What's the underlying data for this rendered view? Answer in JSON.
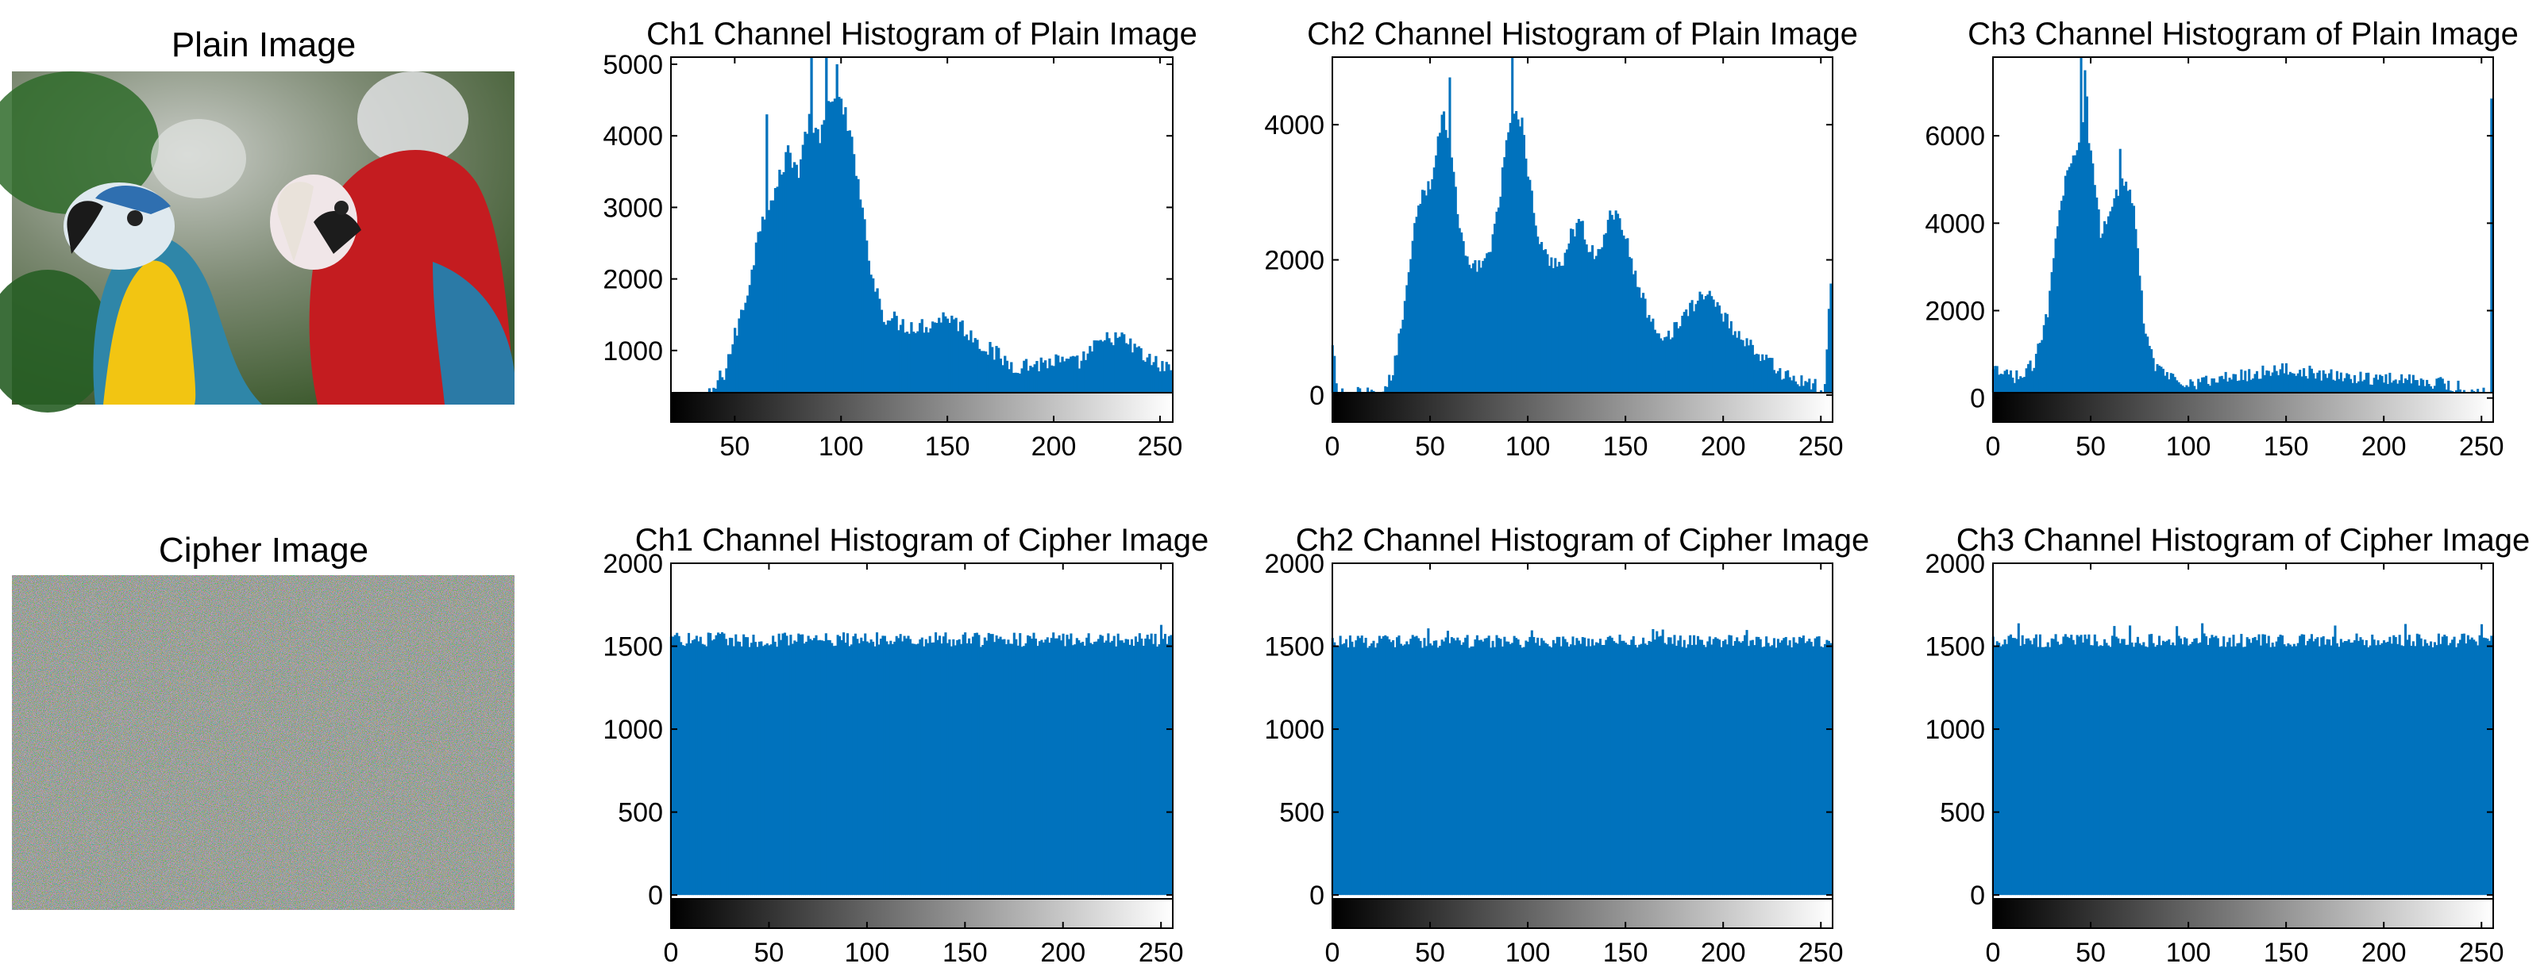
{
  "figure": {
    "plain_image_title": "Plain Image",
    "cipher_image_title": "Cipher Image",
    "colors": {
      "bar": "#0072BD",
      "axis": "#000000"
    }
  },
  "chart_data": [
    {
      "type": "bar",
      "title": "Ch1 Channel Histogram of Plain Image",
      "xlim": [
        20,
        256
      ],
      "ylim": [
        0,
        5100
      ],
      "xticks": [
        50,
        100,
        150,
        200,
        250
      ],
      "yticks": [
        1000,
        2000,
        3000,
        4000,
        5000
      ],
      "colorbar": "grayscale 0-255 below x-axis",
      "control_points": [
        [
          20,
          0
        ],
        [
          25,
          40
        ],
        [
          35,
          200
        ],
        [
          45,
          700
        ],
        [
          55,
          1700
        ],
        [
          63,
          2900
        ],
        [
          70,
          3300
        ],
        [
          75,
          3800
        ],
        [
          80,
          3500
        ],
        [
          85,
          4300
        ],
        [
          90,
          3900
        ],
        [
          95,
          4600
        ],
        [
          100,
          4400
        ],
        [
          105,
          3900
        ],
        [
          110,
          2900
        ],
        [
          115,
          2000
        ],
        [
          120,
          1500
        ],
        [
          130,
          1350
        ],
        [
          140,
          1350
        ],
        [
          150,
          1500
        ],
        [
          160,
          1250
        ],
        [
          170,
          1000
        ],
        [
          180,
          800
        ],
        [
          190,
          800
        ],
        [
          200,
          850
        ],
        [
          210,
          800
        ],
        [
          220,
          1050
        ],
        [
          228,
          1200
        ],
        [
          235,
          1100
        ],
        [
          245,
          850
        ],
        [
          256,
          720
        ]
      ],
      "peak_spikes": [
        [
          65,
          4300
        ],
        [
          86,
          5100
        ],
        [
          93,
          5100
        ],
        [
          98,
          5000
        ],
        [
          102,
          4400
        ]
      ],
      "noise_amplitude": 130
    },
    {
      "type": "bar",
      "title": "Ch2 Channel Histogram of Plain Image",
      "xlim": [
        0,
        256
      ],
      "ylim": [
        -400,
        5000
      ],
      "xticks": [
        0,
        50,
        100,
        150,
        200,
        250
      ],
      "yticks": [
        0,
        2000,
        4000
      ],
      "colorbar": "grayscale 0-255 below x-axis",
      "control_points": [
        [
          0,
          700
        ],
        [
          3,
          0
        ],
        [
          20,
          0
        ],
        [
          28,
          80
        ],
        [
          33,
          600
        ],
        [
          38,
          1600
        ],
        [
          42,
          2600
        ],
        [
          46,
          3000
        ],
        [
          50,
          3100
        ],
        [
          53,
          3600
        ],
        [
          57,
          4200
        ],
        [
          61,
          3500
        ],
        [
          66,
          2300
        ],
        [
          71,
          1850
        ],
        [
          76,
          2000
        ],
        [
          81,
          2100
        ],
        [
          86,
          3000
        ],
        [
          90,
          4000
        ],
        [
          93,
          4200
        ],
        [
          97,
          4000
        ],
        [
          101,
          3100
        ],
        [
          106,
          2200
        ],
        [
          112,
          1950
        ],
        [
          118,
          2000
        ],
        [
          122,
          2400
        ],
        [
          127,
          2550
        ],
        [
          132,
          2150
        ],
        [
          137,
          2050
        ],
        [
          142,
          2700
        ],
        [
          147,
          2650
        ],
        [
          152,
          2100
        ],
        [
          157,
          1550
        ],
        [
          163,
          1100
        ],
        [
          170,
          850
        ],
        [
          177,
          1050
        ],
        [
          184,
          1300
        ],
        [
          190,
          1500
        ],
        [
          194,
          1480
        ],
        [
          198,
          1300
        ],
        [
          204,
          1000
        ],
        [
          212,
          800
        ],
        [
          222,
          500
        ],
        [
          232,
          300
        ],
        [
          244,
          150
        ],
        [
          252,
          80
        ],
        [
          255,
          1700
        ]
      ],
      "peak_spikes": [
        [
          60,
          4700
        ],
        [
          92,
          5000
        ]
      ],
      "noise_amplitude": 120
    },
    {
      "type": "bar",
      "title": "Ch3 Channel Histogram of Plain Image",
      "xlim": [
        0,
        256
      ],
      "ylim": [
        -550,
        7800
      ],
      "xticks": [
        0,
        50,
        100,
        150,
        200,
        250
      ],
      "yticks": [
        0,
        2000,
        4000,
        6000
      ],
      "colorbar": "grayscale 0-255 below x-axis",
      "control_points": [
        [
          0,
          600
        ],
        [
          10,
          500
        ],
        [
          16,
          500
        ],
        [
          22,
          900
        ],
        [
          28,
          2000
        ],
        [
          32,
          3800
        ],
        [
          37,
          5000
        ],
        [
          42,
          5600
        ],
        [
          46,
          6400
        ],
        [
          50,
          5800
        ],
        [
          55,
          3800
        ],
        [
          59,
          4000
        ],
        [
          63,
          4700
        ],
        [
          66,
          4900
        ],
        [
          70,
          4800
        ],
        [
          73,
          4000
        ],
        [
          77,
          1800
        ],
        [
          83,
          700
        ],
        [
          93,
          450
        ],
        [
          103,
          350
        ],
        [
          113,
          400
        ],
        [
          123,
          500
        ],
        [
          133,
          550
        ],
        [
          143,
          650
        ],
        [
          150,
          650
        ],
        [
          160,
          600
        ],
        [
          170,
          500
        ],
        [
          180,
          500
        ],
        [
          195,
          450
        ],
        [
          210,
          450
        ],
        [
          222,
          400
        ],
        [
          232,
          300
        ],
        [
          242,
          200
        ],
        [
          250,
          150
        ],
        [
          254,
          100
        ],
        [
          255,
          7000
        ]
      ],
      "peak_spikes": [
        [
          45,
          7800
        ],
        [
          47,
          7500
        ],
        [
          65,
          5700
        ],
        [
          48,
          6900
        ]
      ],
      "noise_amplitude": 160
    },
    {
      "type": "bar",
      "title": "Ch1 Channel Histogram of Cipher Image",
      "xlim": [
        0,
        256
      ],
      "ylim": [
        -200,
        2000
      ],
      "xticks": [
        0,
        50,
        100,
        150,
        200,
        250
      ],
      "yticks": [
        0,
        500,
        1000,
        1500,
        2000
      ],
      "colorbar": "grayscale 0-255 below x-axis",
      "mean": 1540,
      "noise_amplitude": 45,
      "max": 1640
    },
    {
      "type": "bar",
      "title": "Ch2 Channel Histogram of Cipher Image",
      "xlim": [
        0,
        256
      ],
      "ylim": [
        -200,
        2000
      ],
      "xticks": [
        0,
        50,
        100,
        150,
        200,
        250
      ],
      "yticks": [
        0,
        500,
        1000,
        1500,
        2000
      ],
      "colorbar": "grayscale 0-255 below x-axis",
      "mean": 1530,
      "noise_amplitude": 40,
      "max": 1610
    },
    {
      "type": "bar",
      "title": "Ch3 Channel Histogram of Cipher Image",
      "xlim": [
        0,
        256
      ],
      "ylim": [
        -200,
        2000
      ],
      "xticks": [
        0,
        50,
        100,
        150,
        200,
        250
      ],
      "yticks": [
        0,
        500,
        1000,
        1500,
        2000
      ],
      "colorbar": "grayscale 0-255 below x-axis",
      "mean": 1535,
      "noise_amplitude": 42,
      "max": 1640
    }
  ]
}
